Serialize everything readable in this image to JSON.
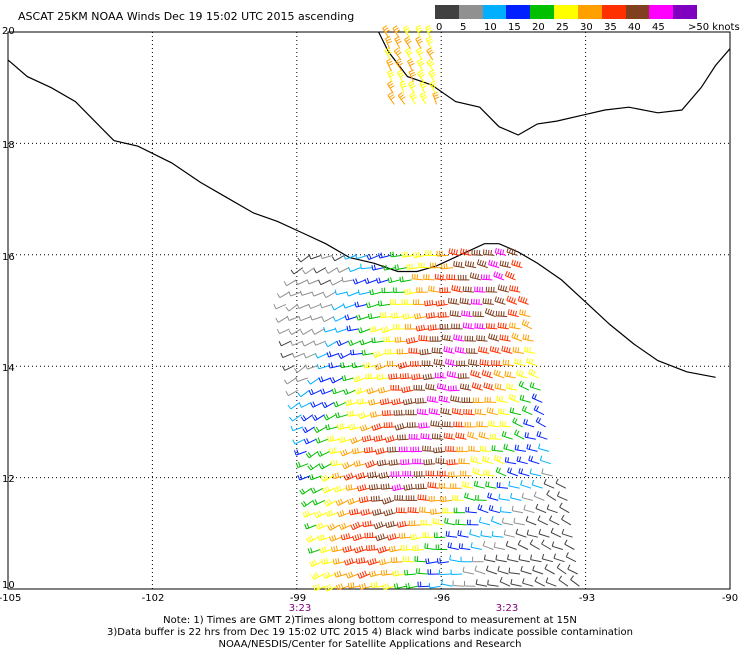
{
  "title": "ASCAT 25KM NOAA Winds Dec 19 15:02 UTC 2015 ascending",
  "legend": {
    "labels": [
      "0",
      "5",
      "10",
      "15",
      "20",
      "25",
      "30",
      "35",
      "40",
      "45",
      ">50 knots"
    ],
    "colors": [
      "#404040",
      "#909090",
      "#00b0ff",
      "#0020ff",
      "#00c000",
      "#ffff00",
      "#ffa000",
      "#ff3000",
      "#804020",
      "#ff00ff",
      "#8000c0"
    ]
  },
  "axes": {
    "lat_labels": [
      "20",
      "18",
      "16",
      "14",
      "12",
      "10"
    ],
    "lon_labels": [
      "-105",
      "-102",
      "-99",
      "-96",
      "-93",
      "-90"
    ],
    "lat_range": [
      10,
      20
    ],
    "lon_range": [
      -105,
      -90
    ]
  },
  "pass_times": [
    "3:23",
    "3:23"
  ],
  "notes": {
    "line1": "Note: 1) Times are GMT 2)Times along bottom correspond to measurement at 15N",
    "line2": "3)Data buffer is 22 hrs from Dec 19 15:02 UTC 2015 4) Black wind barbs indicate possible contamination",
    "line3": "NOAA/NESDIS/Center for Satellite Applications and Research"
  }
}
